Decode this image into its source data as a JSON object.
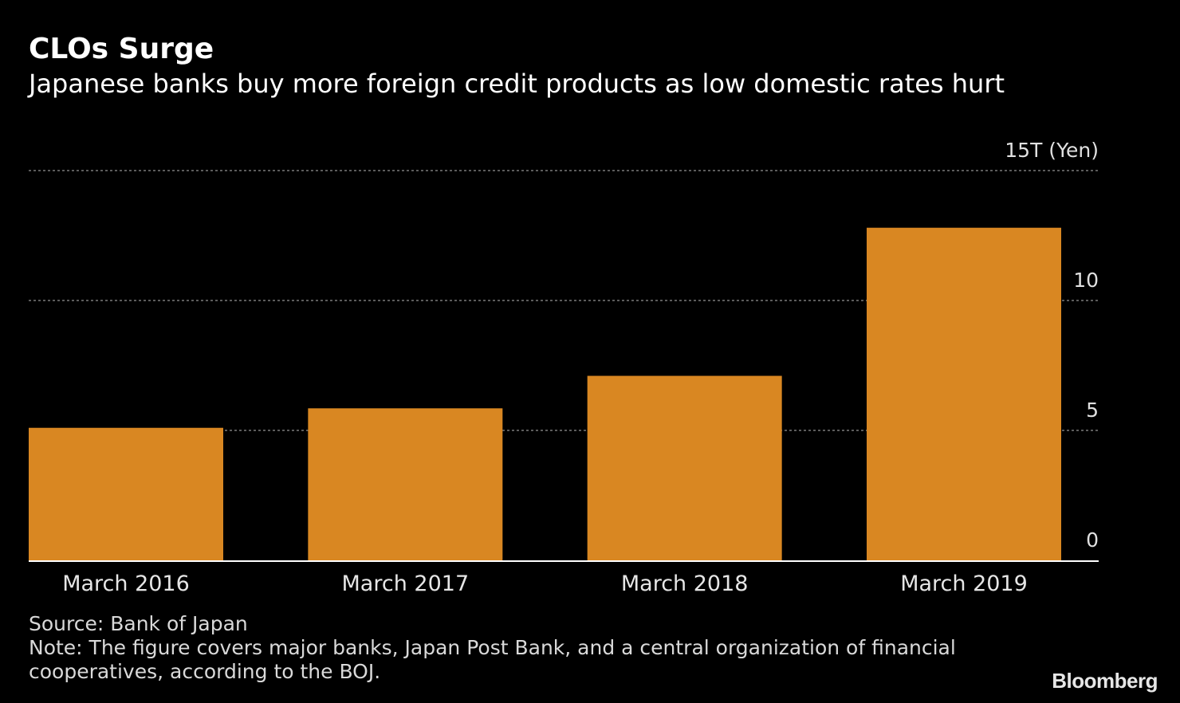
{
  "header": {
    "title": "CLOs Surge",
    "subtitle": "Japanese banks buy more foreign credit products as low domestic rates hurt"
  },
  "chart_data": {
    "type": "bar",
    "categories": [
      "March 2016",
      "March 2017",
      "March 2018",
      "March 2019"
    ],
    "values": [
      5.1,
      5.85,
      7.1,
      12.8
    ],
    "ylim": [
      0,
      15
    ],
    "yticks": [
      0,
      5,
      10,
      15
    ],
    "ytick_labels": [
      "0",
      "5",
      "10",
      "15T (Yen)"
    ],
    "ylabel": "Yen",
    "y_axis_position": "right",
    "grid": "dotted horizontal",
    "colors": {
      "bar": "#d98722",
      "background": "#000000",
      "grid": "#7a7a7a",
      "axis": "#ffffff",
      "text": "#ffffff"
    }
  },
  "footer": {
    "source": "Source: Bank of Japan",
    "note": "Note: The figure covers major banks, Japan Post Bank, and a central organization of financial cooperatives, according to the BOJ.",
    "logo": "Bloomberg"
  }
}
